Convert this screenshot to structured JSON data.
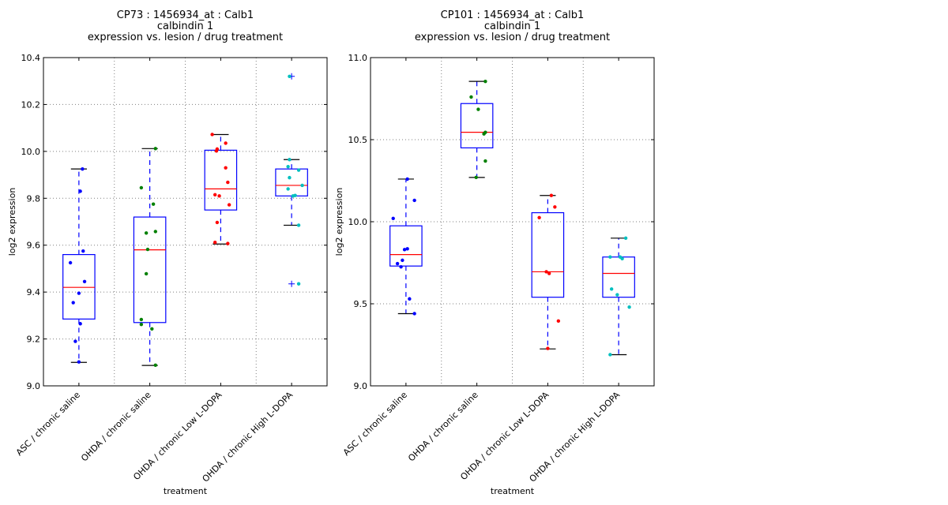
{
  "chart_data": [
    {
      "type": "boxplot",
      "title_lines": [
        "CP73 : 1456934_at : Calb1",
        "calbindin 1",
        "expression vs. lesion / drug treatment"
      ],
      "xlabel": "treatment",
      "ylabel": "log2 expression",
      "ylim": [
        9.0,
        10.4
      ],
      "yticks": [
        9.0,
        9.2,
        9.4,
        9.6,
        9.8,
        10.0,
        10.2,
        10.4
      ],
      "ytick_labels": [
        "9.0",
        "9.2",
        "9.4",
        "9.6",
        "9.8",
        "10.0",
        "10.2",
        "10.4"
      ],
      "grid": true,
      "categories": [
        "ASC / chronic saline",
        "OHDA / chronic saline",
        "OHDA / chronic Low L-DOPA",
        "OHDA / chronic High L-DOPA"
      ],
      "groups": [
        {
          "color": "#0000ff",
          "q1": 9.285,
          "median": 9.42,
          "q3": 9.56,
          "whisker_low": 9.1,
          "whisker_high": 9.925,
          "outliers": [],
          "points": [
            [
              0.05,
              9.925
            ],
            [
              0.02,
              9.83
            ],
            [
              0.06,
              9.575
            ],
            [
              -0.12,
              9.525
            ],
            [
              0.08,
              9.445
            ],
            [
              0.0,
              9.395
            ],
            [
              -0.08,
              9.355
            ],
            [
              0.02,
              9.265
            ],
            [
              -0.05,
              9.19
            ],
            [
              0.0,
              9.102
            ]
          ]
        },
        {
          "color": "#008000",
          "q1": 9.27,
          "median": 9.58,
          "q3": 9.72,
          "whisker_low": 9.087,
          "whisker_high": 10.012,
          "outliers": [],
          "points": [
            [
              0.08,
              10.012
            ],
            [
              -0.12,
              9.845
            ],
            [
              0.05,
              9.775
            ],
            [
              -0.05,
              9.652
            ],
            [
              0.08,
              9.658
            ],
            [
              -0.03,
              9.582
            ],
            [
              -0.05,
              9.478
            ],
            [
              -0.12,
              9.283
            ],
            [
              -0.12,
              9.262
            ],
            [
              0.03,
              9.243
            ],
            [
              0.08,
              9.088
            ]
          ]
        },
        {
          "color": "#ff0000",
          "q1": 9.75,
          "median": 9.84,
          "q3": 10.005,
          "whisker_low": 9.605,
          "whisker_high": 10.072,
          "outliers": [],
          "points": [
            [
              -0.12,
              10.072
            ],
            [
              0.07,
              10.035
            ],
            [
              -0.05,
              10.01
            ],
            [
              -0.06,
              10.002
            ],
            [
              0.07,
              9.93
            ],
            [
              0.1,
              9.868
            ],
            [
              -0.08,
              9.815
            ],
            [
              -0.02,
              9.81
            ],
            [
              0.12,
              9.772
            ],
            [
              -0.05,
              9.697
            ],
            [
              -0.08,
              9.612
            ],
            [
              0.1,
              9.607
            ]
          ]
        },
        {
          "color": "#00bfbf",
          "q1": 9.81,
          "median": 9.855,
          "q3": 9.925,
          "whisker_low": 9.685,
          "whisker_high": 9.965,
          "outliers": [
            10.32,
            9.435
          ],
          "points": [
            [
              -0.03,
              10.32
            ],
            [
              -0.03,
              9.965
            ],
            [
              -0.05,
              9.935
            ],
            [
              0.1,
              9.92
            ],
            [
              -0.03,
              9.888
            ],
            [
              0.15,
              9.855
            ],
            [
              -0.05,
              9.84
            ],
            [
              0.02,
              9.81
            ],
            [
              0.05,
              9.812
            ],
            [
              0.1,
              9.685
            ],
            [
              0.1,
              9.435
            ]
          ]
        }
      ]
    },
    {
      "type": "boxplot",
      "title_lines": [
        "CP101 : 1456934_at : Calb1",
        "calbindin 1",
        "expression vs. lesion / drug treatment"
      ],
      "xlabel": "treatment",
      "ylabel": "log2 expression",
      "ylim": [
        9.0,
        11.0
      ],
      "yticks": [
        9.0,
        9.5,
        10.0,
        10.5,
        11.0
      ],
      "ytick_labels": [
        "9.0",
        "9.5",
        "10.0",
        "10.5",
        "11.0"
      ],
      "grid": true,
      "categories": [
        "ASC / chronic saline",
        "OHDA / chronic saline",
        "OHDA / chronic Low L-DOPA",
        "OHDA / chronic High L-DOPA"
      ],
      "groups": [
        {
          "color": "#0000ff",
          "q1": 9.73,
          "median": 9.8,
          "q3": 9.975,
          "whisker_low": 9.44,
          "whisker_high": 10.26,
          "outliers": [],
          "points": [
            [
              0.02,
              10.26
            ],
            [
              0.12,
              10.13
            ],
            [
              -0.18,
              10.02
            ],
            [
              0.02,
              9.835
            ],
            [
              -0.02,
              9.83
            ],
            [
              -0.05,
              9.765
            ],
            [
              -0.12,
              9.745
            ],
            [
              -0.07,
              9.725
            ],
            [
              0.05,
              9.53
            ],
            [
              0.12,
              9.44
            ]
          ]
        },
        {
          "color": "#008000",
          "q1": 10.45,
          "median": 10.545,
          "q3": 10.72,
          "whisker_low": 10.27,
          "whisker_high": 10.855,
          "outliers": [],
          "points": [
            [
              0.12,
              10.855
            ],
            [
              -0.08,
              10.76
            ],
            [
              0.02,
              10.685
            ],
            [
              0.12,
              10.545
            ],
            [
              0.1,
              10.535
            ],
            [
              0.12,
              10.37
            ],
            [
              -0.01,
              10.27
            ]
          ]
        },
        {
          "color": "#ff0000",
          "q1": 9.54,
          "median": 9.695,
          "q3": 10.055,
          "whisker_low": 9.225,
          "whisker_high": 10.16,
          "outliers": [],
          "points": [
            [
              0.05,
              10.16
            ],
            [
              0.1,
              10.09
            ],
            [
              -0.12,
              10.025
            ],
            [
              -0.02,
              9.695
            ],
            [
              0.02,
              9.685
            ],
            [
              0.15,
              9.395
            ],
            [
              0.0,
              9.228
            ]
          ]
        },
        {
          "color": "#00bfbf",
          "q1": 9.54,
          "median": 9.685,
          "q3": 9.785,
          "whisker_low": 9.19,
          "whisker_high": 9.9,
          "outliers": [],
          "points": [
            [
              0.1,
              9.9
            ],
            [
              -0.12,
              9.785
            ],
            [
              0.02,
              9.785
            ],
            [
              0.05,
              9.775
            ],
            [
              -0.1,
              9.59
            ],
            [
              -0.02,
              9.555
            ],
            [
              0.15,
              9.48
            ],
            [
              -0.12,
              9.19
            ]
          ]
        }
      ]
    }
  ]
}
